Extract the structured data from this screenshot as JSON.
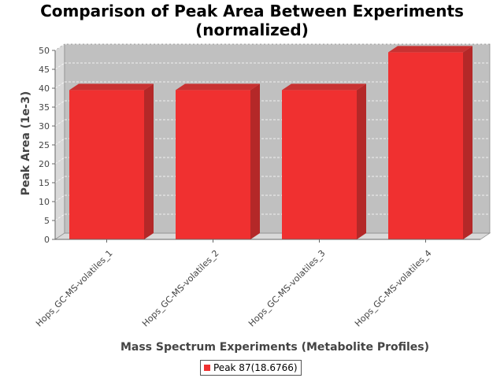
{
  "chart_data": {
    "type": "bar",
    "title_line1": "Comparison of Peak Area Between Experiments",
    "title_line2": "(normalized)",
    "xlabel": "Mass Spectrum Experiments (Metabolite Profiles)",
    "ylabel": "Peak Area (1e-3)",
    "categories": [
      "Hops_GC-MS-volatiles_1",
      "Hops_GC-MS-volatiles_2",
      "Hops_GC-MS-volatiles_3",
      "Hops_GC-MS-volatiles_4"
    ],
    "series": [
      {
        "name": "Peak 87(18.6766)",
        "values": [
          39.5,
          39.5,
          39.5,
          49.5
        ],
        "color": "#f03030"
      }
    ],
    "ylim": [
      0,
      50
    ],
    "yticks": [
      0,
      5,
      10,
      15,
      20,
      25,
      30,
      35,
      40,
      45,
      50
    ],
    "grid": true,
    "legend_position": "bottom"
  }
}
